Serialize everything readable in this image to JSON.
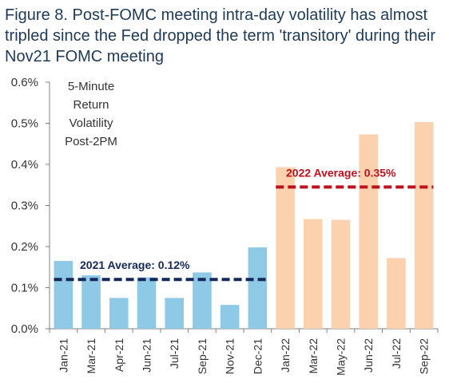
{
  "title": "Figure 8. Post-FOMC meeting intra-day volatility has almost tripled since the Fed dropped the term 'transitory' during their Nov21 FOMC meeting",
  "chart_data": {
    "type": "bar",
    "title": "Figure 8. Post-FOMC meeting intra-day volatility has almost tripled since the Fed dropped the term 'transitory' during their Nov21 FOMC meeting",
    "xlabel": "",
    "ylabel": "",
    "ylim": [
      0,
      0.6
    ],
    "yticks": [
      0,
      0.1,
      0.2,
      0.3,
      0.4,
      0.5,
      0.6
    ],
    "ytick_labels": [
      "0.0%",
      "0.1%",
      "0.2%",
      "0.3%",
      "0.4%",
      "0.5%",
      "0.6%"
    ],
    "categories": [
      "Jan-21",
      "Mar-21",
      "Apr-21",
      "Jun-21",
      "Jul-21",
      "Sep-21",
      "Nov-21",
      "Dec-21",
      "Jan-22",
      "Mar-22",
      "May-22",
      "Jun-22",
      "Jul-22",
      "Sep-22"
    ],
    "values": [
      0.165,
      0.13,
      0.075,
      0.125,
      0.075,
      0.137,
      0.058,
      0.198,
      0.393,
      0.267,
      0.265,
      0.473,
      0.172,
      0.503
    ],
    "groups": [
      {
        "year": "2021",
        "count": 8,
        "color": "#8ec9e6"
      },
      {
        "year": "2022",
        "count": 6,
        "color": "#fbd1ae"
      }
    ],
    "averages": [
      {
        "label": "2021 Average: 0.12%",
        "value": 0.12,
        "start_index": 0,
        "end_index": 7,
        "color": "#14285c"
      },
      {
        "label": "2022 Average: 0.35%",
        "value": 0.345,
        "start_index": 8,
        "end_index": 13,
        "color": "#c0101c"
      }
    ],
    "annotation": [
      "5-Minute",
      "Return",
      "Volatility",
      "Post-2PM"
    ],
    "grid": false,
    "legend": "none"
  }
}
